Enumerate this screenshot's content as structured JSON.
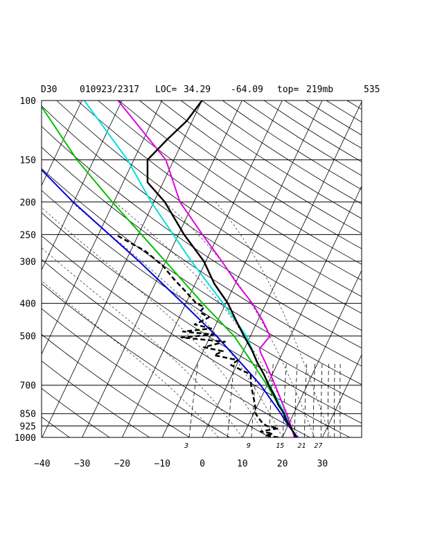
{
  "chart_data": {
    "type": "line",
    "title": {
      "station": "D30",
      "datetime": "010923/2317",
      "loc_label": "LOC=",
      "lat": "34.29",
      "lon": "-64.09",
      "top_label": "top=",
      "top_value": "219mb",
      "number": "535"
    },
    "pressure_ticks": [
      "100",
      "150",
      "200",
      "250",
      "300",
      "400",
      "500",
      "700",
      "850",
      "925",
      "1000"
    ],
    "pressure_values": [
      100,
      150,
      200,
      250,
      300,
      400,
      500,
      700,
      850,
      925,
      1000
    ],
    "temperature_ticks": [
      "−40",
      "−30",
      "−20",
      "−10",
      "0",
      "10",
      "20",
      "30"
    ],
    "temperature_values": [
      -40,
      -30,
      -20,
      -10,
      0,
      10,
      20,
      30
    ],
    "mixing_ratio_labels": [
      "3",
      "9",
      "15",
      "21",
      "27"
    ],
    "mixing_ratio_values": [
      3,
      9,
      15,
      21,
      27
    ],
    "xlim": [
      -40,
      40
    ],
    "ylim": [
      1000,
      100
    ],
    "yscale": "log",
    "grid": true,
    "colors": {
      "temperature": "#000000",
      "dewpoint": "#000000",
      "parcel_blue": "#0000e0",
      "parcel_green": "#00c000",
      "parcel_cyan": "#00e0e0",
      "parcel_magenta": "#e000e0",
      "grid": "#000000"
    },
    "series": [
      {
        "role": "temperature",
        "style": "solid",
        "points": [
          [
            1000,
            23.2
          ],
          [
            975,
            22.6
          ],
          [
            950,
            21.5
          ],
          [
            925,
            20.6
          ],
          [
            900,
            19.4
          ],
          [
            875,
            18.4
          ],
          [
            850,
            17.6
          ],
          [
            800,
            15.1
          ],
          [
            750,
            13.0
          ],
          [
            700,
            10.4
          ],
          [
            650,
            7.9
          ],
          [
            600,
            4.9
          ],
          [
            550,
            2.0
          ],
          [
            500,
            -1.6
          ],
          [
            450,
            -5.4
          ],
          [
            400,
            -9.5
          ],
          [
            350,
            -15.2
          ],
          [
            300,
            -20.5
          ],
          [
            250,
            -28.6
          ],
          [
            200,
            -37.3
          ],
          [
            175,
            -43.9
          ],
          [
            150,
            -46.6
          ],
          [
            130,
            -44.0
          ],
          [
            115,
            -41.4
          ],
          [
            100,
            -40.0
          ]
        ]
      },
      {
        "role": "dewpoint",
        "style": "dashed",
        "points": [
          [
            1000,
            19.0
          ],
          [
            985,
            15.5
          ],
          [
            975,
            17.2
          ],
          [
            960,
            13.9
          ],
          [
            940,
            17.9
          ],
          [
            925,
            14.7
          ],
          [
            900,
            13.0
          ],
          [
            875,
            11.7
          ],
          [
            850,
            10.5
          ],
          [
            800,
            9.3
          ],
          [
            750,
            7.7
          ],
          [
            700,
            6.0
          ],
          [
            650,
            4.6
          ],
          [
            610,
            -1.4
          ],
          [
            590,
            -0.3
          ],
          [
            570,
            -6.8
          ],
          [
            555,
            -5.1
          ],
          [
            540,
            -10.3
          ],
          [
            520,
            -5.7
          ],
          [
            505,
            -17.1
          ],
          [
            495,
            -9.4
          ],
          [
            485,
            -17.4
          ],
          [
            475,
            -10.7
          ],
          [
            462,
            -15.3
          ],
          [
            450,
            -13.7
          ],
          [
            440,
            -12.6
          ],
          [
            425,
            -15.5
          ],
          [
            410,
            -15.0
          ],
          [
            400,
            -17.4
          ],
          [
            370,
            -21.3
          ],
          [
            340,
            -25.7
          ],
          [
            310,
            -30.1
          ],
          [
            280,
            -36.3
          ],
          [
            250,
            -45.7
          ]
        ]
      },
      {
        "role": "parcel",
        "color": "blue",
        "points": [
          [
            1000,
            23.8
          ],
          [
            925,
            20.2
          ],
          [
            850,
            16.8
          ],
          [
            700,
            8.4
          ],
          [
            600,
            0.7
          ],
          [
            500,
            -8.5
          ],
          [
            400,
            -20.7
          ],
          [
            300,
            -36.7
          ],
          [
            200,
            -60.2
          ],
          [
            150,
            -75.5
          ],
          [
            100,
            -91.4
          ]
        ]
      },
      {
        "role": "parcel",
        "color": "green",
        "points": [
          [
            1000,
            23.6
          ],
          [
            925,
            20.5
          ],
          [
            850,
            17.5
          ],
          [
            700,
            10.0
          ],
          [
            600,
            3.6
          ],
          [
            500,
            -4.1
          ],
          [
            400,
            -15.8
          ],
          [
            300,
            -30.1
          ],
          [
            200,
            -50.4
          ],
          [
            150,
            -64.2
          ],
          [
            100,
            -81.1
          ]
        ]
      },
      {
        "role": "parcel",
        "color": "cyan",
        "points": [
          [
            1000,
            23.4
          ],
          [
            925,
            20.6
          ],
          [
            850,
            17.8
          ],
          [
            700,
            10.6
          ],
          [
            600,
            4.9
          ],
          [
            500,
            -1.0
          ],
          [
            400,
            -10.7
          ],
          [
            300,
            -23.6
          ],
          [
            200,
            -40.7
          ],
          [
            150,
            -51.6
          ],
          [
            100,
            -69.4
          ]
        ]
      },
      {
        "role": "parcel",
        "color": "magenta",
        "points": [
          [
            1000,
            23.0
          ],
          [
            925,
            20.8
          ],
          [
            850,
            18.2
          ],
          [
            700,
            12.0
          ],
          [
            600,
            6.9
          ],
          [
            560,
            4.5
          ],
          [
            545,
            3.8
          ],
          [
            500,
            4.9
          ],
          [
            450,
            1.2
          ],
          [
            400,
            -3.4
          ],
          [
            350,
            -9.5
          ],
          [
            300,
            -16.0
          ],
          [
            250,
            -24.0
          ],
          [
            200,
            -33.5
          ],
          [
            150,
            -42.0
          ],
          [
            100,
            -61.0
          ]
        ]
      }
    ]
  }
}
